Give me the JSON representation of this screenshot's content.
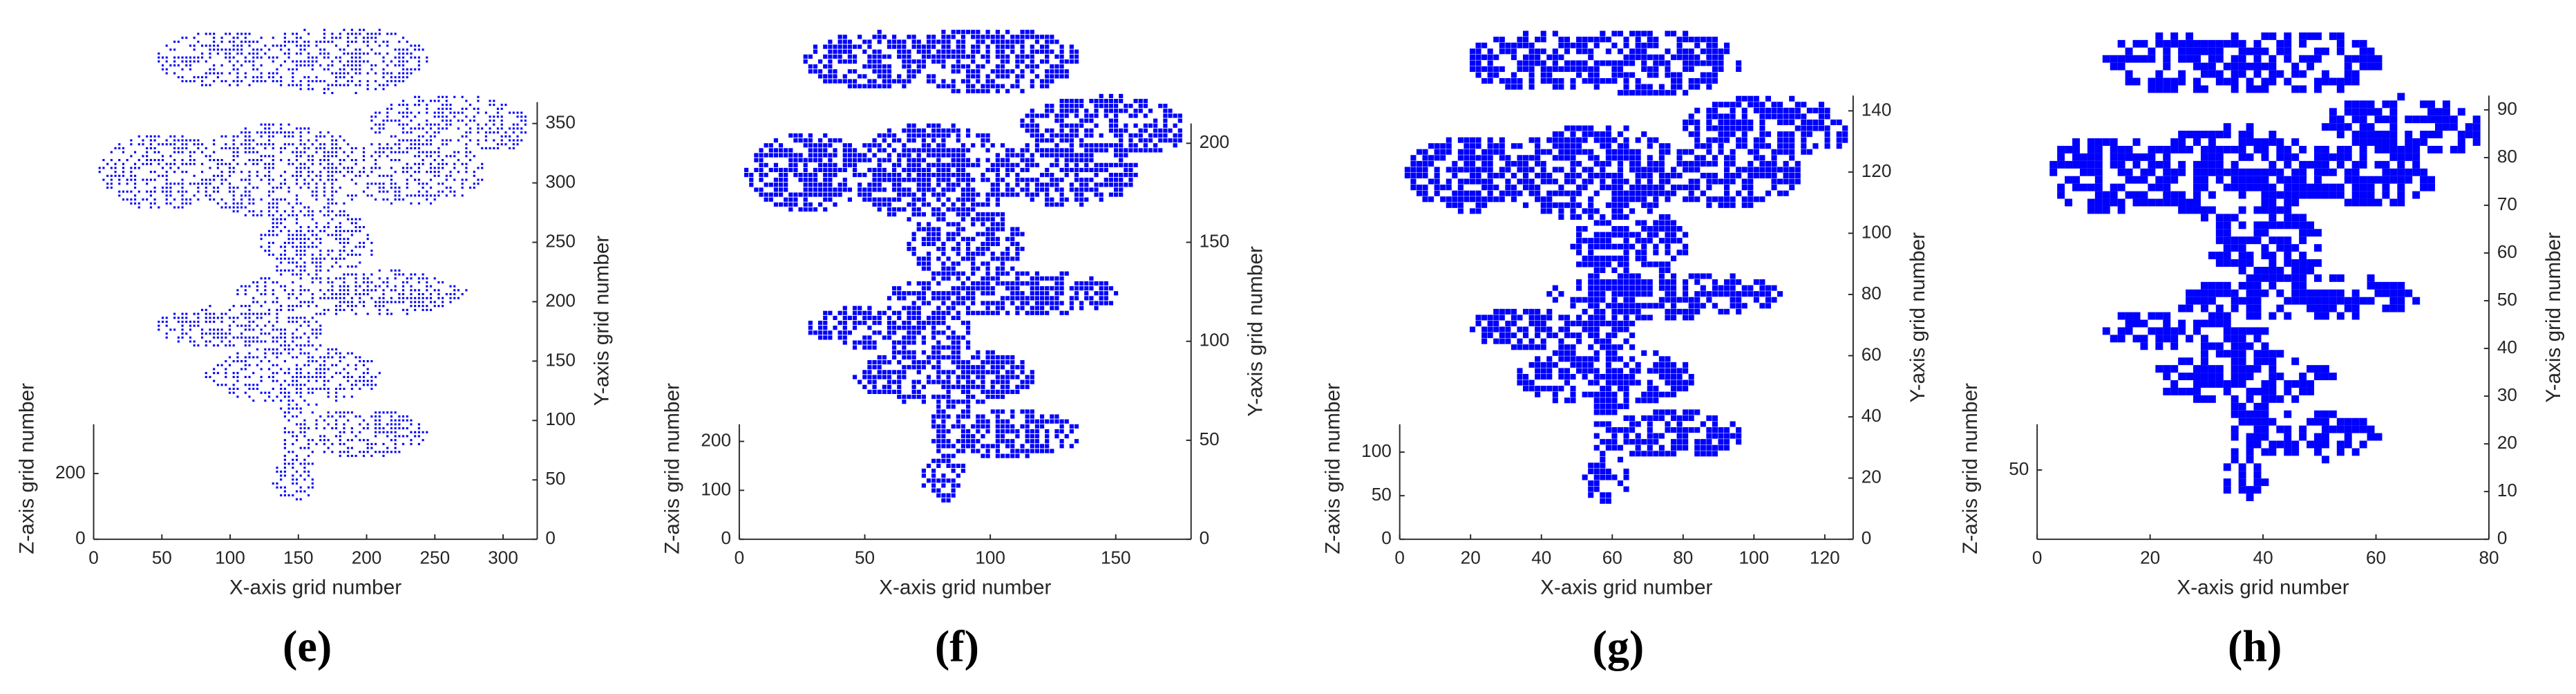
{
  "chart_data": [
    {
      "type": "scatter",
      "label": "(e)",
      "color": "#0000ff",
      "xlabel": "X-axis grid number",
      "ylabel": "Y-axis grid number",
      "zlabel": "Z-axis grid number",
      "xlim": [
        0,
        325
      ],
      "xticks": [
        0,
        50,
        100,
        150,
        200,
        250,
        300
      ],
      "ylim": [
        0,
        368
      ],
      "yticks": [
        0,
        50,
        100,
        150,
        200,
        250,
        300,
        350
      ],
      "zlim": [
        0,
        350
      ],
      "zticks": [
        0,
        200
      ]
    },
    {
      "type": "scatter",
      "label": "(f)",
      "color": "#0000ff",
      "xlabel": "X-axis grid number",
      "ylabel": "Y-axis grid number",
      "zlabel": "Z-axis grid number",
      "xlim": [
        0,
        180
      ],
      "xticks": [
        0,
        50,
        100,
        150
      ],
      "ylim": [
        0,
        210
      ],
      "yticks": [
        0,
        50,
        100,
        150,
        200
      ],
      "zlim": [
        0,
        235
      ],
      "zticks": [
        0,
        100,
        200
      ]
    },
    {
      "type": "scatter",
      "label": "(g)",
      "color": "#0000ff",
      "xlabel": "X-axis grid number",
      "ylabel": "Y-axis grid number",
      "zlabel": "Z-axis grid number",
      "xlim": [
        0,
        128
      ],
      "xticks": [
        0,
        20,
        40,
        60,
        80,
        100,
        120
      ],
      "ylim": [
        0,
        145
      ],
      "yticks": [
        0,
        20,
        40,
        60,
        80,
        100,
        120,
        140
      ],
      "zlim": [
        0,
        132
      ],
      "zticks": [
        0,
        50,
        100
      ]
    },
    {
      "type": "scatter",
      "label": "(h)",
      "color": "#0000ff",
      "xlabel": "X-axis grid number",
      "ylabel": "Y-axis grid number",
      "zlabel": "Z-axis grid number",
      "xlim": [
        0,
        80
      ],
      "xticks": [
        0,
        20,
        40,
        60,
        80
      ],
      "ylim": [
        0,
        93
      ],
      "yticks": [
        0,
        10,
        20,
        30,
        40,
        50,
        60,
        70,
        80,
        90
      ],
      "zlim": [
        0,
        83
      ],
      "zticks": [
        50
      ]
    }
  ]
}
